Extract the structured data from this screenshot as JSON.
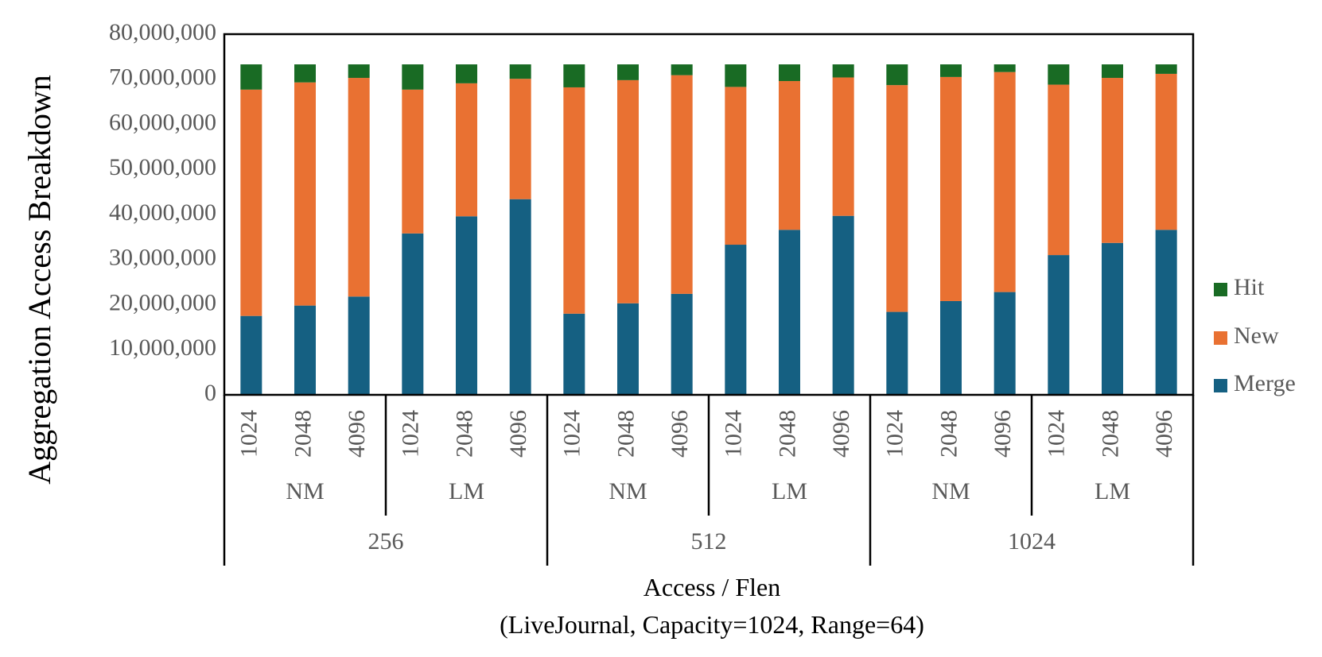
{
  "chart_data": {
    "type": "bar",
    "stacked": true,
    "title": "",
    "ylabel": "Aggregation Access Breakdown",
    "xlabel": "Access / Flen",
    "subtitle": "(LiveJournal, Capacity=1024, Range=64)",
    "ylim": [
      0,
      80000000
    ],
    "yticks": [
      "0",
      "10,000,000",
      "20,000,000",
      "30,000,000",
      "40,000,000",
      "50,000,000",
      "60,000,000",
      "70,000,000",
      "80,000,000"
    ],
    "grid": false,
    "legend_position": "right",
    "categories": [
      "1024",
      "2048",
      "4096",
      "1024",
      "2048",
      "4096",
      "1024",
      "2048",
      "4096",
      "1024",
      "2048",
      "4096",
      "1024",
      "2048",
      "4096",
      "1024",
      "2048",
      "4096"
    ],
    "subgroups": [
      "NM",
      "LM",
      "NM",
      "LM",
      "NM",
      "LM"
    ],
    "groups": [
      "256",
      "512",
      "1024"
    ],
    "series": [
      {
        "name": "Merge",
        "color": "#156082",
        "values": [
          17500000,
          19800000,
          21800000,
          35800000,
          39600000,
          43400000,
          18000000,
          20300000,
          22400000,
          33300000,
          36600000,
          39700000,
          18400000,
          20800000,
          22800000,
          31000000,
          33700000,
          36600000
        ]
      },
      {
        "name": "New",
        "color": "#E97132",
        "values": [
          50200000,
          49500000,
          48500000,
          31900000,
          29500000,
          26700000,
          50200000,
          49500000,
          48500000,
          35000000,
          33000000,
          30700000,
          50300000,
          49700000,
          48800000,
          37800000,
          36600000,
          34600000
        ]
      },
      {
        "name": "Hit",
        "color": "#196B24",
        "values": [
          5600000,
          4000000,
          3000000,
          5600000,
          4200000,
          3200000,
          5100000,
          3500000,
          2400000,
          5000000,
          3700000,
          2900000,
          4600000,
          2800000,
          1700000,
          4500000,
          3000000,
          2100000
        ]
      }
    ]
  }
}
